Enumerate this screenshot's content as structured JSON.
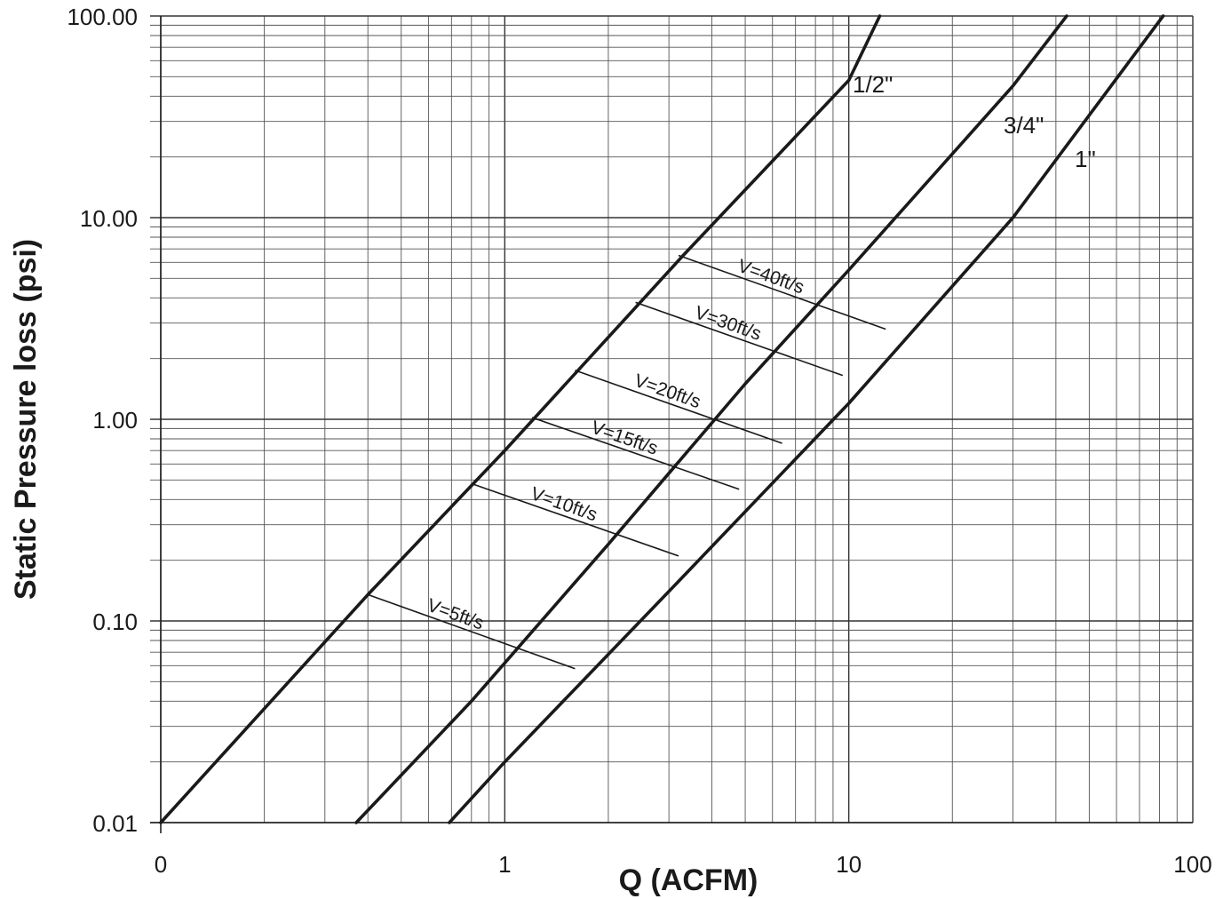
{
  "chart_data": {
    "type": "line",
    "xlabel": "Q (ACFM)",
    "ylabel": "Static Pressure loss (psi)",
    "x_scale": "log",
    "y_scale": "log",
    "xlim": [
      0.1,
      100
    ],
    "ylim": [
      0.01,
      100
    ],
    "grid": true,
    "x_tick_labels": [
      {
        "value": 0.1,
        "label": "0"
      },
      {
        "value": 1,
        "label": "1"
      },
      {
        "value": 10,
        "label": "10"
      },
      {
        "value": 100,
        "label": "100"
      }
    ],
    "y_tick_labels": [
      {
        "value": 0.01,
        "label": "0.01"
      },
      {
        "value": 0.1,
        "label": "0.10"
      },
      {
        "value": 1,
        "label": "1.00"
      },
      {
        "value": 10,
        "label": "10.00"
      },
      {
        "value": 100,
        "label": "100.00"
      }
    ],
    "series": [
      {
        "name": "1/2\"",
        "x": [
          0.1,
          0.4,
          1.0,
          3.3,
          10.0,
          12.3
        ],
        "y": [
          0.01,
          0.135,
          0.7,
          6.5,
          48,
          100
        ]
      },
      {
        "name": "3/4\"",
        "x": [
          0.37,
          0.8,
          2.0,
          5.0,
          10.0,
          30.0,
          43.0
        ],
        "y": [
          0.01,
          0.04,
          0.24,
          1.5,
          5.5,
          45,
          100
        ]
      },
      {
        "name": "1\"",
        "x": [
          0.69,
          1.0,
          3.0,
          10.0,
          30.0,
          82.0
        ],
        "y": [
          0.01,
          0.02,
          0.14,
          1.2,
          10,
          100
        ]
      }
    ],
    "velocity_lines": [
      {
        "label": "V=5ft/s",
        "x": [
          0.4,
          1.6
        ],
        "y": [
          0.135,
          0.058
        ]
      },
      {
        "label": "V=10ft/s",
        "x": [
          0.8,
          3.2
        ],
        "y": [
          0.48,
          0.21
        ]
      },
      {
        "label": "V=15ft/s",
        "x": [
          1.2,
          4.8
        ],
        "y": [
          1.02,
          0.45
        ]
      },
      {
        "label": "V=20ft/s",
        "x": [
          1.6,
          6.4
        ],
        "y": [
          1.75,
          0.76
        ]
      },
      {
        "label": "V=30ft/s",
        "x": [
          2.4,
          9.6
        ],
        "y": [
          3.8,
          1.65
        ]
      },
      {
        "label": "V=40ft/s",
        "x": [
          3.2,
          12.8
        ],
        "y": [
          6.5,
          2.8
        ]
      }
    ]
  }
}
